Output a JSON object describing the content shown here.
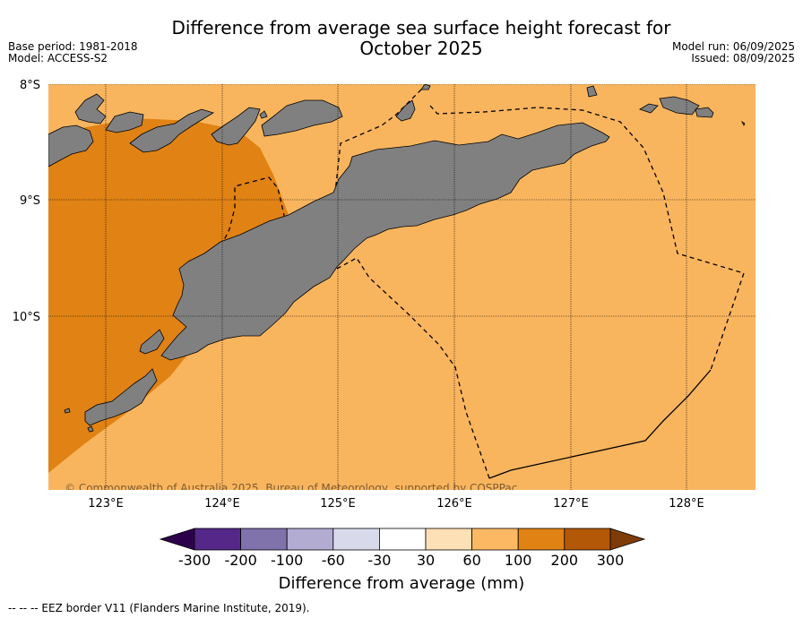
{
  "header": {
    "title_line1": "Difference from average sea surface height forecast for",
    "title_line2": "October 2025",
    "base_period": "Base period: 1981-2018",
    "model": "Model: ACCESS-S2",
    "model_run": "Model run: 06/09/2025",
    "issued": "Issued: 08/09/2025"
  },
  "map": {
    "lat_labels": [
      "8°S",
      "9°S",
      "10°S"
    ],
    "lon_labels": [
      "123°E",
      "124°E",
      "125°E",
      "126°E",
      "127°E",
      "128°E"
    ],
    "copyright": "© Commonwealth of Australia 2025, Bureau of Meteorology, supported by COSPPac",
    "colors": {
      "ocean_60_100": "#f9b55e",
      "ocean_100_200": "#e08214",
      "land": "#808080",
      "coast": "#000000"
    }
  },
  "colorbar": {
    "labels": [
      "-300",
      "-200",
      "-100",
      "-60",
      "-30",
      "30",
      "60",
      "100",
      "200",
      "300"
    ],
    "colors": [
      "#2d004b",
      "#542788",
      "#8073ac",
      "#b2abd2",
      "#d8daeb",
      "#ffffff",
      "#fee0b6",
      "#fdb863",
      "#e08214",
      "#b35806",
      "#7f3b08"
    ],
    "title": "Difference from average (mm)"
  },
  "footer": {
    "eez_note": "--  --  -- EEZ border V11 (Flanders Marine Institute, 2019)."
  }
}
